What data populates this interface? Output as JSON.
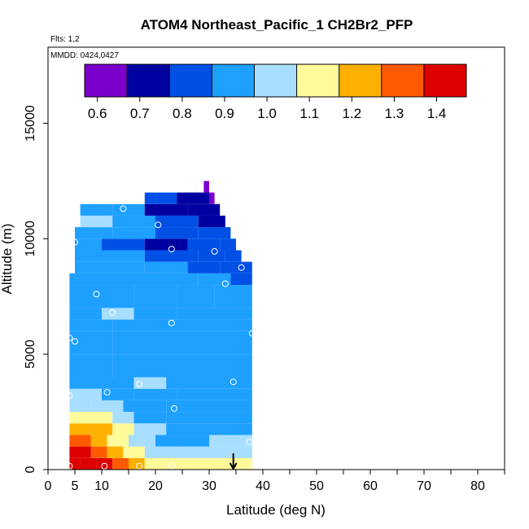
{
  "chart_data": {
    "type": "heatmap",
    "title": "ATOM4 Northeast_Pacific_1 CH2Br2_PFP",
    "flights_label": "Flts: 1,2",
    "dates_label": "MMDD: 0424,0427",
    "xlabel": "Latitude (deg N)",
    "ylabel": "Altitude (m)",
    "xlim": [
      0,
      85
    ],
    "ylim": [
      0,
      17500
    ],
    "x_ticks": [
      0,
      5,
      10,
      20,
      30,
      40,
      50,
      60,
      70,
      80
    ],
    "x_ticks_unlabeled": [
      15,
      25,
      35,
      45,
      55,
      65,
      75,
      85
    ],
    "y_ticks": [
      0,
      5000,
      10000,
      15000
    ],
    "colorbar": {
      "ticks": [
        "0.6",
        "0.7",
        "0.8",
        "0.9",
        "1.0",
        "1.1",
        "1.2",
        "1.3",
        "1.4"
      ],
      "range": [
        0.57,
        1.47
      ],
      "boundaries": [
        0.57,
        0.67,
        0.77,
        0.87,
        0.97,
        1.07,
        1.17,
        1.27,
        1.37,
        1.47
      ],
      "colors": [
        "#7a00cc",
        "#0000a0",
        "#0050e6",
        "#1ea0ff",
        "#a8deff",
        "#fffa9a",
        "#ffb000",
        "#ff5a00",
        "#dd0000",
        "#a00010"
      ]
    },
    "rows": [
      {
        "alt": [
          0,
          500
        ],
        "values": [
          [
            4,
            6,
            1.4
          ],
          [
            6,
            9,
            1.42
          ],
          [
            9,
            12,
            1.38
          ],
          [
            12,
            15,
            1.3
          ],
          [
            15,
            18,
            1.2
          ],
          [
            18,
            24,
            1.12
          ],
          [
            24,
            30,
            1.1
          ],
          [
            30,
            38,
            1.08
          ]
        ]
      },
      {
        "alt": [
          500,
          1000
        ],
        "values": [
          [
            4,
            8,
            1.38
          ],
          [
            8,
            11,
            1.33
          ],
          [
            11,
            14,
            1.25
          ],
          [
            14,
            18,
            1.12
          ],
          [
            18,
            24,
            1.02
          ],
          [
            24,
            30,
            1.0
          ],
          [
            30,
            38,
            1.02
          ]
        ]
      },
      {
        "alt": [
          1000,
          1500
        ],
        "values": [
          [
            4,
            8,
            1.3
          ],
          [
            8,
            11,
            1.24
          ],
          [
            11,
            15,
            1.15
          ],
          [
            15,
            20,
            1.03
          ],
          [
            20,
            30,
            0.96
          ],
          [
            30,
            38,
            0.98
          ]
        ]
      },
      {
        "alt": [
          1500,
          2000
        ],
        "values": [
          [
            4,
            8,
            1.24
          ],
          [
            8,
            12,
            1.18
          ],
          [
            12,
            16,
            1.08
          ],
          [
            16,
            22,
            0.98
          ],
          [
            22,
            30,
            0.95
          ],
          [
            30,
            38,
            0.96
          ]
        ]
      },
      {
        "alt": [
          2000,
          2500
        ],
        "values": [
          [
            4,
            8,
            1.14
          ],
          [
            8,
            12,
            1.1
          ],
          [
            12,
            16,
            1.02
          ],
          [
            16,
            22,
            0.95
          ],
          [
            22,
            30,
            0.93
          ],
          [
            30,
            38,
            0.94
          ]
        ]
      },
      {
        "alt": [
          2500,
          3000
        ],
        "values": [
          [
            4,
            8,
            1.05
          ],
          [
            8,
            14,
            1.0
          ],
          [
            14,
            22,
            0.93
          ],
          [
            22,
            30,
            0.9
          ],
          [
            30,
            38,
            0.92
          ]
        ]
      },
      {
        "alt": [
          3000,
          3500
        ],
        "values": [
          [
            4,
            10,
            0.97
          ],
          [
            10,
            16,
            0.95
          ],
          [
            16,
            24,
            0.9
          ],
          [
            24,
            30,
            0.88
          ],
          [
            30,
            38,
            0.9
          ]
        ]
      },
      {
        "alt": [
          3500,
          4000
        ],
        "values": [
          [
            4,
            10,
            0.93
          ],
          [
            10,
            16,
            0.96
          ],
          [
            16,
            22,
            0.98
          ],
          [
            22,
            30,
            0.92
          ],
          [
            30,
            38,
            0.91
          ]
        ]
      },
      {
        "alt": [
          4000,
          5000
        ],
        "values": [
          [
            4,
            12,
            0.92
          ],
          [
            12,
            20,
            0.95
          ],
          [
            20,
            30,
            0.9
          ],
          [
            30,
            38,
            0.91
          ]
        ]
      },
      {
        "alt": [
          5000,
          6000
        ],
        "values": [
          [
            4,
            12,
            0.9
          ],
          [
            12,
            20,
            0.92
          ],
          [
            20,
            30,
            0.89
          ],
          [
            30,
            38,
            0.9
          ]
        ]
      },
      {
        "alt": [
          6000,
          6500
        ],
        "values": [
          [
            4,
            12,
            0.9
          ],
          [
            12,
            20,
            0.92
          ],
          [
            20,
            30,
            0.9
          ],
          [
            30,
            38,
            0.91
          ]
        ]
      },
      {
        "alt": [
          6500,
          7000
        ],
        "values": [
          [
            4,
            10,
            0.94
          ],
          [
            10,
            16,
            0.98
          ],
          [
            16,
            24,
            0.95
          ],
          [
            24,
            30,
            0.9
          ],
          [
            30,
            38,
            0.92
          ]
        ]
      },
      {
        "alt": [
          7000,
          8000
        ],
        "values": [
          [
            4,
            10,
            0.9
          ],
          [
            10,
            16,
            0.93
          ],
          [
            16,
            24,
            0.9
          ],
          [
            24,
            31,
            0.88
          ],
          [
            31,
            38,
            0.9
          ]
        ]
      },
      {
        "alt": [
          8000,
          8500
        ],
        "values": [
          [
            4,
            10,
            0.92
          ],
          [
            10,
            20,
            0.9
          ],
          [
            20,
            28,
            0.88
          ],
          [
            28,
            34,
            0.88
          ],
          [
            34,
            38,
            0.86
          ]
        ]
      },
      {
        "alt": [
          8500,
          9000
        ],
        "values": [
          [
            5,
            10,
            0.93
          ],
          [
            10,
            18,
            0.9
          ],
          [
            18,
            26,
            0.87
          ],
          [
            26,
            32,
            0.86
          ],
          [
            32,
            38,
            0.78
          ]
        ]
      },
      {
        "alt": [
          9000,
          9500
        ],
        "values": [
          [
            5,
            10,
            0.95
          ],
          [
            10,
            18,
            0.9
          ],
          [
            18,
            28,
            0.84
          ],
          [
            28,
            33,
            0.82
          ],
          [
            33,
            36,
            0.8
          ]
        ]
      },
      {
        "alt": [
          9500,
          10000
        ],
        "values": [
          [
            5,
            10,
            0.92
          ],
          [
            10,
            18,
            0.86
          ],
          [
            18,
            26,
            0.74
          ],
          [
            26,
            32,
            0.78
          ],
          [
            32,
            35,
            0.82
          ]
        ]
      },
      {
        "alt": [
          10000,
          10500
        ],
        "values": [
          [
            5,
            12,
            0.95
          ],
          [
            12,
            20,
            0.9
          ],
          [
            20,
            28,
            0.84
          ],
          [
            28,
            34,
            0.85
          ]
        ]
      },
      {
        "alt": [
          10500,
          11000
        ],
        "values": [
          [
            6,
            12,
            0.97
          ],
          [
            12,
            20,
            0.9
          ],
          [
            20,
            28,
            0.78
          ],
          [
            28,
            33,
            0.72
          ]
        ]
      },
      {
        "alt": [
          11000,
          11500
        ],
        "values": [
          [
            6,
            12,
            0.95
          ],
          [
            12,
            18,
            0.88
          ],
          [
            18,
            26,
            0.72
          ],
          [
            26,
            32,
            0.7
          ]
        ]
      },
      {
        "alt": [
          11500,
          12000
        ],
        "values": [
          [
            18,
            24,
            0.82
          ],
          [
            24,
            30,
            0.7
          ],
          [
            30,
            31,
            0.66
          ]
        ]
      },
      {
        "alt": [
          12000,
          12500
        ],
        "values": [
          [
            29,
            30,
            0.62
          ]
        ]
      }
    ],
    "sample_points": [
      [
        4,
        150
      ],
      [
        10.5,
        150
      ],
      [
        17,
        150
      ],
      [
        23,
        150
      ],
      [
        4,
        3200
      ],
      [
        11,
        3350
      ],
      [
        17,
        3700
      ],
      [
        23.5,
        2650
      ],
      [
        34.5,
        3800
      ],
      [
        37.5,
        1200
      ],
      [
        4,
        5700
      ],
      [
        5,
        5550
      ],
      [
        23,
        6350
      ],
      [
        38,
        5900
      ],
      [
        9,
        7600
      ],
      [
        12,
        6800
      ],
      [
        33,
        8050
      ],
      [
        36,
        8750
      ],
      [
        5,
        9850
      ],
      [
        23,
        9550
      ],
      [
        31,
        9450
      ],
      [
        20.5,
        10600
      ],
      [
        14,
        11300
      ]
    ],
    "flags": [
      {
        "x": 34.5,
        "type": "arrow-down-at-axis"
      }
    ]
  }
}
